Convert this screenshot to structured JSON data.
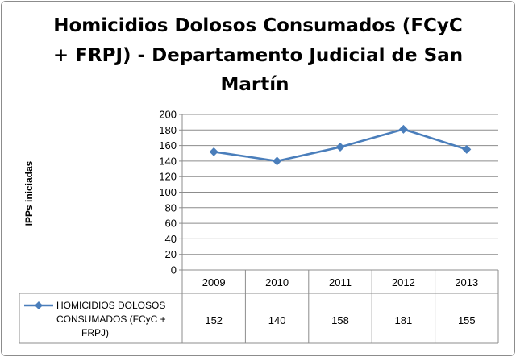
{
  "chart_data": {
    "type": "line",
    "title_lines": [
      "Homicidios Dolosos Consumados (FCyC",
      "+ FRPJ) - Departamento Judicial de San",
      "Martín"
    ],
    "ylabel": "IPPs iniciadas",
    "ylim": [
      0,
      200
    ],
    "ytick_step": 20,
    "ytick_labels": [
      "0",
      "20",
      "40",
      "60",
      "80",
      "100",
      "120",
      "140",
      "160",
      "180",
      "200"
    ],
    "grid": true,
    "categories": [
      "2009",
      "2010",
      "2011",
      "2012",
      "2013"
    ],
    "series": [
      {
        "name_lines": [
          "HOMICIDIOS DOLOSOS",
          "CONSUMADOS (FCyC +",
          "FRPJ)"
        ],
        "color": "#4a7ebb",
        "values": [
          152,
          140,
          158,
          181,
          155
        ],
        "value_labels": [
          "152",
          "140",
          "158",
          "181",
          "155"
        ]
      }
    ],
    "data_table": true
  }
}
